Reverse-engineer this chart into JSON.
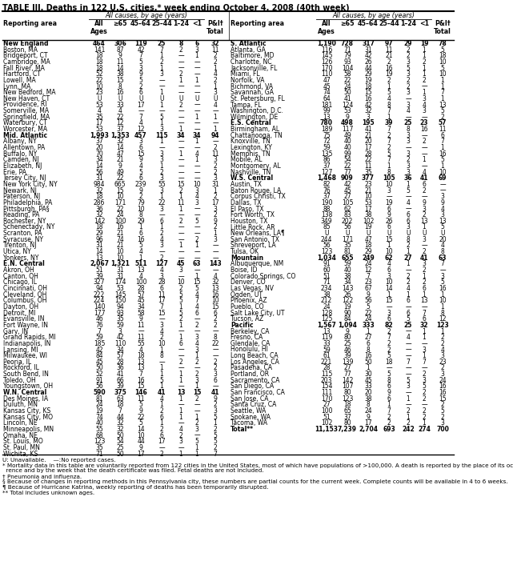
{
  "title": "TABLE III. Deaths in 122 U.S. cities,* week ending October 4, 2008 (40th week)",
  "footnotes": [
    "U: Unavailable.    —:No reported cases.",
    "* Mortality data in this table are voluntarily reported from 122 cities in the United States, most of which have populations of >100,000. A death is reported by the place of its occur-",
    "  rence and by the week that the death certificate was filed. Fetal deaths are not included.",
    "† Pneumonia and influenza.",
    "§ Because of changes in reporting methods in this Pennsylvania city, these numbers are partial counts for the current week. Complete counts will be available in 4 to 6 weeks.",
    "¶ Because of Hurricane Katrina, weekly reporting of deaths has been temporarily disrupted.",
    "** Total includes unknown ages."
  ],
  "rows_left": [
    [
      "New England",
      "464",
      "306",
      "119",
      "25",
      "8",
      "6",
      "32",
      "bold"
    ],
    [
      "Boston, MA",
      "141",
      "87",
      "42",
      "7",
      "2",
      "3",
      "11",
      "normal"
    ],
    [
      "Bridgeport, CT",
      "18",
      "9",
      "7",
      "1",
      "—",
      "1",
      "2",
      "normal"
    ],
    [
      "Cambridge, MA",
      "18",
      "11",
      "5",
      "2",
      "—",
      "—",
      "2",
      "normal"
    ],
    [
      "Fall River, MA",
      "18",
      "14",
      "3",
      "1",
      "—",
      "—",
      "1",
      "normal"
    ],
    [
      "Hartford, CT",
      "52",
      "38",
      "9",
      "3",
      "2",
      "—",
      "4",
      "normal"
    ],
    [
      "Lowell, MA",
      "22",
      "15",
      "5",
      "—",
      "1",
      "1",
      "2",
      "normal"
    ],
    [
      "Lynn, MA",
      "10",
      "8",
      "2",
      "—",
      "—",
      "—",
      "1",
      "normal"
    ],
    [
      "New Bedford, MA",
      "23",
      "16",
      "6",
      "1",
      "—",
      "—",
      "3",
      "normal"
    ],
    [
      "New Haven, CT",
      "U",
      "U",
      "U",
      "U",
      "U",
      "U",
      "U",
      "normal"
    ],
    [
      "Providence, RI",
      "53",
      "33",
      "17",
      "1",
      "2",
      "—",
      "4",
      "normal"
    ],
    [
      "Somerville, MA",
      "4",
      "4",
      "—",
      "—",
      "—",
      "—",
      "—",
      "normal"
    ],
    [
      "Springfield, MA",
      "35",
      "22",
      "7",
      "5",
      "—",
      "1",
      "1",
      "normal"
    ],
    [
      "Waterbury, CT",
      "17",
      "12",
      "4",
      "1",
      "—",
      "—",
      "—",
      "normal"
    ],
    [
      "Worcester, MA",
      "53",
      "37",
      "12",
      "3",
      "1",
      "—",
      "1",
      "normal"
    ],
    [
      "Mid. Atlantic",
      "1,993",
      "1,353",
      "457",
      "115",
      "34",
      "34",
      "94",
      "bold"
    ],
    [
      "Albany, NY",
      "37",
      "32",
      "3",
      "1",
      "—",
      "1",
      "—",
      "normal"
    ],
    [
      "Allentown, PA",
      "20",
      "14",
      "6",
      "—",
      "—",
      "—",
      "2",
      "normal"
    ],
    [
      "Buffalo, NY",
      "70",
      "47",
      "15",
      "3",
      "1",
      "4",
      "11",
      "normal"
    ],
    [
      "Camden, NJ",
      "34",
      "21",
      "9",
      "3",
      "—",
      "1",
      "3",
      "normal"
    ],
    [
      "Elizabeth, NJ",
      "14",
      "9",
      "4",
      "1",
      "—",
      "—",
      "2",
      "normal"
    ],
    [
      "Erie, PA",
      "56",
      "49",
      "5",
      "2",
      "—",
      "—",
      "2",
      "normal"
    ],
    [
      "Jersey City, NJ",
      "31",
      "22",
      "6",
      "3",
      "—",
      "—",
      "3",
      "normal"
    ],
    [
      "New York City, NY",
      "984",
      "665",
      "239",
      "55",
      "15",
      "10",
      "31",
      "normal"
    ],
    [
      "Newark, NJ",
      "32",
      "15",
      "9",
      "3",
      "2",
      "3",
      "1",
      "normal"
    ],
    [
      "Paterson, NJ",
      "18",
      "10",
      "2",
      "1",
      "1",
      "4",
      "2",
      "normal"
    ],
    [
      "Philadelphia, PA",
      "286",
      "171",
      "79",
      "22",
      "11",
      "3",
      "17",
      "normal"
    ],
    [
      "Pittsburgh, PA§",
      "36",
      "22",
      "10",
      "3",
      "1",
      "—",
      "3",
      "normal"
    ],
    [
      "Reading, PA",
      "32",
      "24",
      "8",
      "—",
      "—",
      "—",
      "2",
      "normal"
    ],
    [
      "Rochester, NY",
      "142",
      "100",
      "29",
      "6",
      "2",
      "5",
      "9",
      "normal"
    ],
    [
      "Schenectady, NY",
      "18",
      "16",
      "1",
      "1",
      "—",
      "—",
      "2",
      "normal"
    ],
    [
      "Scranton, PA",
      "29",
      "21",
      "6",
      "2",
      "—",
      "—",
      "1",
      "normal"
    ],
    [
      "Syracuse, NY",
      "96",
      "74",
      "16",
      "4",
      "—",
      "2",
      "3",
      "normal"
    ],
    [
      "Trenton, NJ",
      "31",
      "21",
      "5",
      "3",
      "1",
      "1",
      "—",
      "normal"
    ],
    [
      "Utica, NY",
      "14",
      "10",
      "4",
      "—",
      "—",
      "—",
      "—",
      "normal"
    ],
    [
      "Yonkers, NY",
      "13",
      "10",
      "1",
      "2",
      "—",
      "—",
      "—",
      "normal"
    ],
    [
      "E.N. Central",
      "2,067",
      "1,321",
      "511",
      "127",
      "45",
      "63",
      "143",
      "bold"
    ],
    [
      "Akron, OH",
      "51",
      "31",
      "13",
      "4",
      "3",
      "—",
      "—",
      "normal"
    ],
    [
      "Canton, OH",
      "39",
      "31",
      "4",
      "3",
      "—",
      "1",
      "4",
      "normal"
    ],
    [
      "Chicago, IL",
      "327",
      "174",
      "100",
      "28",
      "10",
      "15",
      "32",
      "normal"
    ],
    [
      "Cincinnati, OH",
      "94",
      "53",
      "28",
      "6",
      "2",
      "5",
      "13",
      "normal"
    ],
    [
      "Cleveland, OH",
      "222",
      "145",
      "57",
      "11",
      "5",
      "4",
      "16",
      "normal"
    ],
    [
      "Columbus, OH",
      "224",
      "150",
      "45",
      "17",
      "5",
      "7",
      "10",
      "normal"
    ],
    [
      "Dayton, OH",
      "140",
      "94",
      "34",
      "7",
      "1",
      "4",
      "15",
      "normal"
    ],
    [
      "Detroit, MI",
      "177",
      "93",
      "58",
      "15",
      "5",
      "6",
      "6",
      "normal"
    ],
    [
      "Evansville, IN",
      "46",
      "35",
      "9",
      "—",
      "2",
      "—",
      "2",
      "normal"
    ],
    [
      "Fort Wayne, IN",
      "76",
      "59",
      "11",
      "3",
      "1",
      "2",
      "2",
      "normal"
    ],
    [
      "Gary, IN",
      "7",
      "3",
      "—",
      "4",
      "—",
      "—",
      "—",
      "normal"
    ],
    [
      "Grand Rapids, MI",
      "59",
      "42",
      "11",
      "2",
      "1",
      "3",
      "8",
      "normal"
    ],
    [
      "Indianapolis, IN",
      "185",
      "110",
      "55",
      "10",
      "6",
      "4",
      "22",
      "normal"
    ],
    [
      "Lansing, MI",
      "42",
      "34",
      "4",
      "1",
      "—",
      "3",
      "—",
      "normal"
    ],
    [
      "Milwaukee, WI",
      "84",
      "57",
      "18",
      "8",
      "—",
      "1",
      "—",
      "normal"
    ],
    [
      "Peoria, IL",
      "45",
      "28",
      "13",
      "—",
      "2",
      "2",
      "2",
      "normal"
    ],
    [
      "Rockford, IL",
      "50",
      "36",
      "13",
      "1",
      "—",
      "—",
      "2",
      "normal"
    ],
    [
      "South Bend, IN",
      "52",
      "41",
      "7",
      "1",
      "1",
      "2",
      "3",
      "normal"
    ],
    [
      "Toledo, OH",
      "91",
      "66",
      "16",
      "5",
      "1",
      "3",
      "6",
      "normal"
    ],
    [
      "Youngstown, OH",
      "56",
      "39",
      "15",
      "1",
      "—",
      "1",
      "—",
      "normal"
    ],
    [
      "W.N. Central",
      "590",
      "375",
      "146",
      "41",
      "13",
      "15",
      "41",
      "bold"
    ],
    [
      "Des Moines, IA",
      "81",
      "63",
      "11",
      "4",
      "1",
      "2",
      "9",
      "normal"
    ],
    [
      "Duluth, MN",
      "24",
      "18",
      "5",
      "1",
      "—",
      "—",
      "2",
      "normal"
    ],
    [
      "Kansas City, KS",
      "19",
      "7",
      "9",
      "2",
      "1",
      "—",
      "3",
      "normal"
    ],
    [
      "Kansas City, MO",
      "74",
      "44",
      "22",
      "6",
      "1",
      "1",
      "5",
      "normal"
    ],
    [
      "Lincoln, NE",
      "40",
      "32",
      "5",
      "1",
      "—",
      "2",
      "1",
      "normal"
    ],
    [
      "Minneapolis, MN",
      "55",
      "32",
      "14",
      "2",
      "4",
      "3",
      "2",
      "normal"
    ],
    [
      "Omaha, NE",
      "68",
      "50",
      "10",
      "6",
      "2",
      "—",
      "5",
      "normal"
    ],
    [
      "St. Louis, MO",
      "123",
      "54",
      "44",
      "17",
      "3",
      "5",
      "5",
      "normal"
    ],
    [
      "St. Paul, MN",
      "35",
      "25",
      "9",
      "—",
      "—",
      "1",
      "2",
      "normal"
    ],
    [
      "Wichita, KS",
      "71",
      "50",
      "17",
      "2",
      "1",
      "1",
      "7",
      "normal"
    ]
  ],
  "rows_right": [
    [
      "S. Atlantic",
      "1,190",
      "728",
      "317",
      "97",
      "29",
      "19",
      "78",
      "bold"
    ],
    [
      "Atlanta, GA",
      "116",
      "71",
      "31",
      "11",
      "2",
      "1",
      "5",
      "normal"
    ],
    [
      "Baltimore, MD",
      "145",
      "79",
      "42",
      "21",
      "2",
      "1",
      "18",
      "normal"
    ],
    [
      "Charlotte, NC",
      "126",
      "93",
      "26",
      "2",
      "3",
      "2",
      "10",
      "normal"
    ],
    [
      "Jacksonville, FL",
      "170",
      "104",
      "44",
      "16",
      "5",
      "1",
      "5",
      "normal"
    ],
    [
      "Miami, FL",
      "110",
      "58",
      "29",
      "19",
      "3",
      "1",
      "10",
      "normal"
    ],
    [
      "Norfolk, VA",
      "47",
      "22",
      "19",
      "2",
      "2",
      "2",
      "1",
      "normal"
    ],
    [
      "Richmond, VA",
      "45",
      "24",
      "18",
      "1",
      "2",
      "—",
      "1",
      "normal"
    ],
    [
      "Savannah, GA",
      "74",
      "50",
      "15",
      "5",
      "3",
      "1",
      "7",
      "normal"
    ],
    [
      "St. Petersburg, FL",
      "64",
      "41",
      "16",
      "4",
      "—",
      "3",
      "1",
      "normal"
    ],
    [
      "Tampa, FL",
      "181",
      "124",
      "42",
      "8",
      "3",
      "4",
      "13",
      "normal"
    ],
    [
      "Washington, D.C.",
      "99",
      "53",
      "32",
      "7",
      "4",
      "3",
      "5",
      "normal"
    ],
    [
      "Wilmington, DE",
      "13",
      "9",
      "3",
      "1",
      "—",
      "—",
      "2",
      "normal"
    ],
    [
      "E.S. Central",
      "780",
      "498",
      "195",
      "39",
      "25",
      "23",
      "57",
      "bold"
    ],
    [
      "Birmingham, AL",
      "189",
      "117",
      "41",
      "7",
      "8",
      "16",
      "11",
      "normal"
    ],
    [
      "Chattanooga, TN",
      "75",
      "49",
      "21",
      "2",
      "3",
      "—",
      "6",
      "normal"
    ],
    [
      "Knoxville, TN",
      "72",
      "40",
      "20",
      "7",
      "3",
      "2",
      "7",
      "normal"
    ],
    [
      "Lexington, KY",
      "59",
      "40",
      "17",
      "2",
      "—",
      "—",
      "1",
      "normal"
    ],
    [
      "Memphis, TN",
      "135",
      "99",
      "28",
      "5",
      "3",
      "—",
      "16",
      "normal"
    ],
    [
      "Mobile, AL",
      "86",
      "54",
      "22",
      "7",
      "2",
      "1",
      "5",
      "normal"
    ],
    [
      "Montgomery, AL",
      "37",
      "22",
      "11",
      "1",
      "3",
      "—",
      "1",
      "normal"
    ],
    [
      "Nashville, TN",
      "127",
      "77",
      "35",
      "8",
      "3",
      "4",
      "10",
      "normal"
    ],
    [
      "W.S. Central",
      "1,468",
      "909",
      "377",
      "105",
      "36",
      "41",
      "69",
      "bold"
    ],
    [
      "Austin, TX",
      "82",
      "42",
      "23",
      "10",
      "1",
      "6",
      "—",
      "normal"
    ],
    [
      "Baton Rouge, LA",
      "76",
      "45",
      "21",
      "3",
      "5",
      "2",
      "—",
      "normal"
    ],
    [
      "Corpus Christi, TX",
      "37",
      "27",
      "10",
      "—",
      "—",
      "—",
      "3",
      "normal"
    ],
    [
      "Dallas, TX",
      "190",
      "105",
      "53",
      "19",
      "4",
      "9",
      "9",
      "normal"
    ],
    [
      "El Paso, TX",
      "88",
      "62",
      "17",
      "6",
      "—",
      "3",
      "4",
      "normal"
    ],
    [
      "Fort Worth, TX",
      "138",
      "83",
      "38",
      "9",
      "6",
      "2",
      "3",
      "normal"
    ],
    [
      "Houston, TX",
      "349",
      "202",
      "102",
      "26",
      "6",
      "13",
      "13",
      "normal"
    ],
    [
      "Little Rock, AR",
      "85",
      "56",
      "19",
      "6",
      "3",
      "1",
      "5",
      "normal"
    ],
    [
      "New Orleans, LA¶",
      "U",
      "U",
      "U",
      "U",
      "U",
      "U",
      "U",
      "normal"
    ],
    [
      "San Antonio, TX",
      "244",
      "171",
      "47",
      "15",
      "8",
      "3",
      "20",
      "normal"
    ],
    [
      "Shreveport, LA",
      "56",
      "35",
      "18",
      "1",
      "2",
      "—",
      "4",
      "normal"
    ],
    [
      "Tulsa, OK",
      "123",
      "81",
      "29",
      "10",
      "1",
      "2",
      "8",
      "normal"
    ],
    [
      "Mountain",
      "1,034",
      "655",
      "249",
      "62",
      "27",
      "41",
      "63",
      "bold"
    ],
    [
      "Albuquerque, NM",
      "91",
      "59",
      "24",
      "4",
      "1",
      "3",
      "7",
      "normal"
    ],
    [
      "Boise, ID",
      "60",
      "40",
      "12",
      "6",
      "—",
      "2",
      "—",
      "normal"
    ],
    [
      "Colorado Springs, CO",
      "51",
      "38",
      "7",
      "3",
      "2",
      "1",
      "3",
      "normal"
    ],
    [
      "Denver, CO",
      "71",
      "34",
      "23",
      "10",
      "2",
      "2",
      "5",
      "normal"
    ],
    [
      "Las Vegas, NV",
      "234",
      "143",
      "67",
      "14",
      "4",
      "6",
      "16",
      "normal"
    ],
    [
      "Ogden, UT",
      "38",
      "26",
      "9",
      "1",
      "1",
      "1",
      "1",
      "normal"
    ],
    [
      "Phoenix, AZ",
      "212",
      "122",
      "56",
      "15",
      "6",
      "13",
      "10",
      "normal"
    ],
    [
      "Pueblo, CO",
      "24",
      "19",
      "5",
      "—",
      "—",
      "—",
      "1",
      "normal"
    ],
    [
      "Salt Lake City, UT",
      "128",
      "90",
      "22",
      "3",
      "6",
      "7",
      "8",
      "normal"
    ],
    [
      "Tucson, AZ",
      "125",
      "84",
      "24",
      "6",
      "5",
      "6",
      "12",
      "normal"
    ],
    [
      "Pacific",
      "1,567",
      "1,094",
      "333",
      "82",
      "25",
      "32",
      "123",
      "bold"
    ],
    [
      "Berkeley, CA",
      "13",
      "9",
      "1",
      "2",
      "—",
      "1",
      "1",
      "normal"
    ],
    [
      "Fresno, CA",
      "119",
      "80",
      "27",
      "7",
      "4",
      "1",
      "2",
      "normal"
    ],
    [
      "Glendale, CA",
      "33",
      "25",
      "6",
      "2",
      "—",
      "—",
      "2",
      "normal"
    ],
    [
      "Honolulu, HI",
      "59",
      "46",
      "8",
      "2",
      "—",
      "3",
      "4",
      "normal"
    ],
    [
      "Long Beach, CA",
      "61",
      "39",
      "16",
      "5",
      "—",
      "1",
      "3",
      "normal"
    ],
    [
      "Los Angeles, CA",
      "221",
      "139",
      "50",
      "18",
      "7",
      "7",
      "23",
      "normal"
    ],
    [
      "Pasadena, CA",
      "28",
      "27",
      "1",
      "—",
      "—",
      "—",
      "2",
      "normal"
    ],
    [
      "Portland, OR",
      "115",
      "77",
      "30",
      "5",
      "—",
      "2",
      "3",
      "normal"
    ],
    [
      "Sacramento, CA",
      "203",
      "142",
      "45",
      "8",
      "5",
      "3",
      "24",
      "normal"
    ],
    [
      "San Diego, CA",
      "154",
      "107",
      "33",
      "6",
      "3",
      "5",
      "16",
      "normal"
    ],
    [
      "San Francisco, CA",
      "111",
      "80",
      "20",
      "9",
      "—",
      "2",
      "16",
      "normal"
    ],
    [
      "San Jose, CA",
      "170",
      "123",
      "38",
      "6",
      "1",
      "2",
      "15",
      "normal"
    ],
    [
      "Santa Cruz, CA",
      "27",
      "18",
      "8",
      "1",
      "—",
      "—",
      "2",
      "normal"
    ],
    [
      "Seattle, WA",
      "100",
      "65",
      "24",
      "7",
      "2",
      "2",
      "5",
      "normal"
    ],
    [
      "Spokane, WA",
      "51",
      "37",
      "9",
      "2",
      "1",
      "2",
      "2",
      "normal"
    ],
    [
      "Tacoma, WA",
      "102",
      "80",
      "17",
      "2",
      "2",
      "1",
      "3",
      "normal"
    ],
    [
      "Total**",
      "11,153",
      "7,239",
      "2,704",
      "693",
      "242",
      "274",
      "700",
      "bold"
    ]
  ],
  "col_labels": [
    "Reporting area",
    "All\nAges",
    "≥65",
    "45–64",
    "25–44",
    "1–24",
    "<1",
    "P&I†\nTotal"
  ]
}
